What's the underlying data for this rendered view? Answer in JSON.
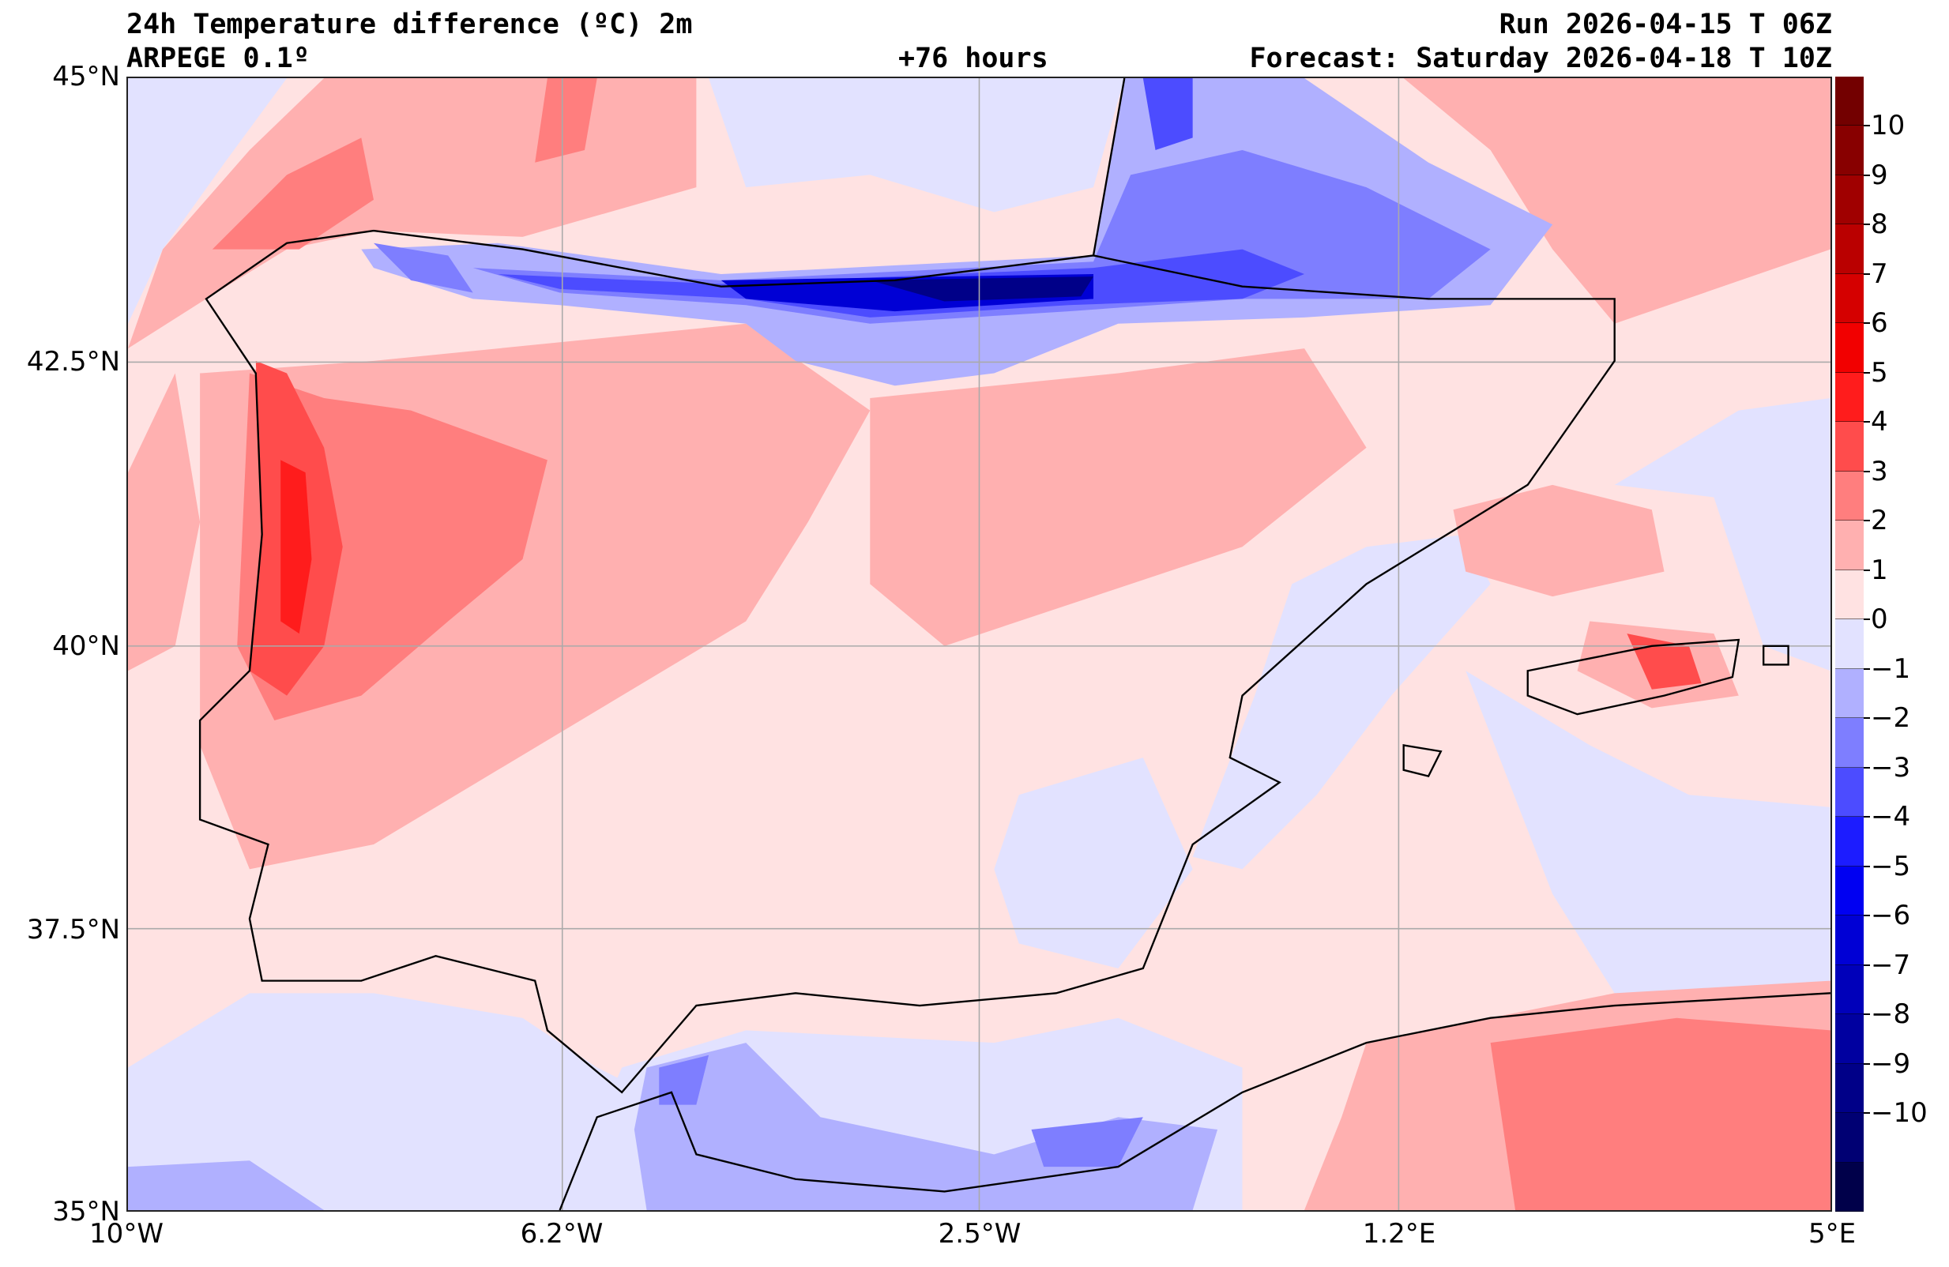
{
  "header": {
    "title": "24h Temperature difference (ºC) 2m",
    "model": "ARPEGE 0.1º",
    "lead_time": "+76 hours",
    "run": "Run 2026-04-15 T 06Z",
    "forecast": "Forecast: Saturday 2026-04-18 T 10Z"
  },
  "axes": {
    "lat_labels": [
      "45°N",
      "42.5°N",
      "40°N",
      "37.5°N",
      "35°N"
    ],
    "lon_labels": [
      "10°W",
      "6.2°W",
      "2.5°W",
      "1.2°E",
      "5°E"
    ]
  },
  "colorbar": {
    "labels": [
      "10",
      "9",
      "8",
      "7",
      "6",
      "5",
      "4",
      "3",
      "2",
      "1",
      "0",
      "−1",
      "−2",
      "−3",
      "−4",
      "−5",
      "−6",
      "−7",
      "−8",
      "−9",
      "−10"
    ],
    "colors": [
      "#730000",
      "#880000",
      "#a00000",
      "#ba0000",
      "#d50000",
      "#f20000",
      "#ff1c1c",
      "#ff4c4c",
      "#ff7e7e",
      "#ffb0b0",
      "#ffe2e2",
      "#e2e2ff",
      "#b0b0ff",
      "#7e7eff",
      "#4c4cff",
      "#1c1cff",
      "#0000f2",
      "#0000d5",
      "#0000ba",
      "#0000a0",
      "#000088",
      "#000073",
      "#00004a"
    ]
  }
}
